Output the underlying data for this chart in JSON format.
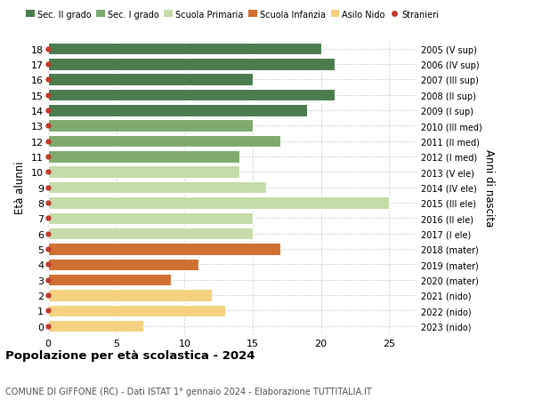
{
  "ages": [
    18,
    17,
    16,
    15,
    14,
    13,
    12,
    11,
    10,
    9,
    8,
    7,
    6,
    5,
    4,
    3,
    2,
    1,
    0
  ],
  "values": [
    20,
    21,
    15,
    21,
    19,
    15,
    17,
    14,
    14,
    16,
    25,
    15,
    15,
    17,
    11,
    9,
    12,
    13,
    7
  ],
  "right_labels": [
    "2005 (V sup)",
    "2006 (IV sup)",
    "2007 (III sup)",
    "2008 (II sup)",
    "2009 (I sup)",
    "2010 (III med)",
    "2011 (II med)",
    "2012 (I med)",
    "2013 (V ele)",
    "2014 (IV ele)",
    "2015 (III ele)",
    "2016 (II ele)",
    "2017 (I ele)",
    "2018 (mater)",
    "2019 (mater)",
    "2020 (mater)",
    "2021 (nido)",
    "2022 (nido)",
    "2023 (nido)"
  ],
  "bar_colors": [
    "#4a7c4e",
    "#4a7c4e",
    "#4a7c4e",
    "#4a7c4e",
    "#4a7c4e",
    "#7faa6e",
    "#7faa6e",
    "#7faa6e",
    "#c5dba8",
    "#c5dba8",
    "#c5dba8",
    "#c5dba8",
    "#c5dba8",
    "#d07030",
    "#d07030",
    "#d07030",
    "#f5d080",
    "#f5d080",
    "#f5d080"
  ],
  "stranieri_color": "#c0392b",
  "legend_labels": [
    "Sec. II grado",
    "Sec. I grado",
    "Scuola Primaria",
    "Scuola Infanzia",
    "Asilo Nido",
    "Stranieri"
  ],
  "legend_colors": [
    "#4a7c4e",
    "#7faa6e",
    "#c5dba8",
    "#d07030",
    "#f5d080",
    "#c0392b"
  ],
  "title": "Popolazione per età scolastica - 2024",
  "subtitle": "COMUNE DI GIFFONE (RC) - Dati ISTAT 1° gennaio 2024 - Elaborazione TUTTITALIA.IT",
  "ylabel": "Età alunni",
  "right_ylabel": "Anni di nascita",
  "xlim": [
    0,
    27
  ],
  "xticks": [
    0,
    5,
    10,
    15,
    20,
    25
  ],
  "bg_color": "#ffffff",
  "grid_color": "#cccccc",
  "bar_height": 0.78
}
